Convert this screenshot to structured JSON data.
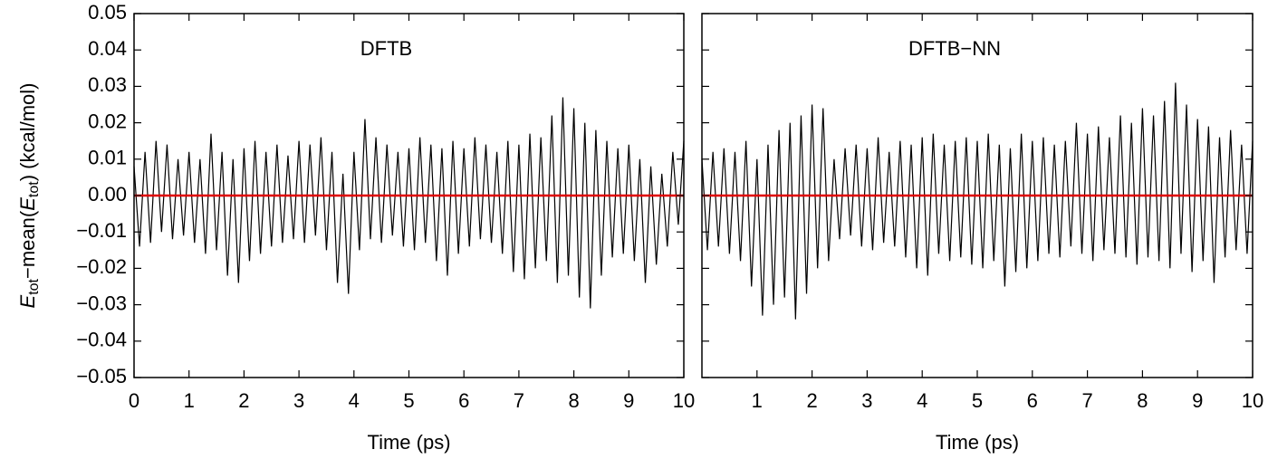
{
  "chart_data": [
    {
      "type": "line",
      "title": "DFTB",
      "xlabel": "Time (ps)",
      "ylabel": [
        "E",
        "tot",
        "−mean(",
        "E",
        "tot",
        ")  (kcal/mol)"
      ],
      "color": "#000000",
      "hline": {
        "value": 0,
        "color": "#e00000"
      },
      "xlim": [
        0,
        10
      ],
      "ylim": [
        -0.05,
        0.05
      ],
      "xticks": [
        0,
        1,
        2,
        3,
        4,
        5,
        6,
        7,
        8,
        9,
        10
      ],
      "yticks": [
        {
          "value": -0.05,
          "label": "−0.05"
        },
        {
          "value": -0.04,
          "label": "−0.04"
        },
        {
          "value": -0.03,
          "label": "−0.03"
        },
        {
          "value": -0.02,
          "label": "−0.02"
        },
        {
          "value": -0.01,
          "label": "−0.01"
        },
        {
          "value": 0,
          "label": "0.00"
        },
        {
          "value": 0.01,
          "label": "0.01"
        },
        {
          "value": 0.02,
          "label": "0.02"
        },
        {
          "value": 0.03,
          "label": "0.03"
        },
        {
          "value": 0.04,
          "label": "0.04"
        },
        {
          "value": 0.05,
          "label": "0.05"
        }
      ],
      "ytick_labels": true,
      "x": [
        0,
        0.1,
        0.2,
        0.3,
        0.4,
        0.5,
        0.6,
        0.7,
        0.8,
        0.9,
        1,
        1.1,
        1.2,
        1.3,
        1.4,
        1.5,
        1.6,
        1.7,
        1.8,
        1.9,
        2,
        2.1,
        2.2,
        2.3,
        2.4,
        2.5,
        2.6,
        2.7,
        2.8,
        2.9,
        3,
        3.1,
        3.2,
        3.3,
        3.4,
        3.5,
        3.6,
        3.7,
        3.8,
        3.9,
        4,
        4.1,
        4.2,
        4.3,
        4.4,
        4.5,
        4.6,
        4.7,
        4.8,
        4.9,
        5,
        5.1,
        5.2,
        5.3,
        5.4,
        5.5,
        5.6,
        5.7,
        5.8,
        5.9,
        6,
        6.1,
        6.2,
        6.3,
        6.4,
        6.5,
        6.6,
        6.7,
        6.8,
        6.9,
        7,
        7.1,
        7.2,
        7.3,
        7.4,
        7.5,
        7.6,
        7.7,
        7.8,
        7.9,
        8,
        8.1,
        8.2,
        8.3,
        8.4,
        8.5,
        8.6,
        8.7,
        8.8,
        8.9,
        9,
        9.1,
        9.2,
        9.3,
        9.4,
        9.5,
        9.6,
        9.7,
        9.8,
        9.9,
        10
      ],
      "values": [
        0.008,
        -0.014,
        0.012,
        -0.013,
        0.015,
        -0.01,
        0.014,
        -0.012,
        0.01,
        -0.011,
        0.012,
        -0.013,
        0.01,
        -0.016,
        0.017,
        -0.015,
        0.012,
        -0.022,
        0.01,
        -0.024,
        0.013,
        -0.018,
        0.015,
        -0.016,
        0.012,
        -0.014,
        0.014,
        -0.013,
        0.011,
        -0.012,
        0.015,
        -0.013,
        0.014,
        -0.011,
        0.016,
        -0.015,
        0.012,
        -0.024,
        0.006,
        -0.027,
        0.012,
        -0.015,
        0.021,
        -0.012,
        0.016,
        -0.013,
        0.014,
        -0.011,
        0.012,
        -0.014,
        0.013,
        -0.015,
        0.016,
        -0.013,
        0.014,
        -0.018,
        0.013,
        -0.022,
        0.015,
        -0.016,
        0.013,
        -0.014,
        0.016,
        -0.012,
        0.014,
        -0.013,
        0.012,
        -0.016,
        0.015,
        -0.021,
        0.014,
        -0.023,
        0.017,
        -0.02,
        0.016,
        -0.018,
        0.022,
        -0.024,
        0.027,
        -0.022,
        0.024,
        -0.028,
        0.02,
        -0.031,
        0.018,
        -0.022,
        0.015,
        -0.017,
        0.013,
        -0.016,
        0.014,
        -0.018,
        0.01,
        -0.024,
        0.008,
        -0.019,
        0.006,
        -0.014,
        0.012,
        -0.008,
        0.015
      ]
    },
    {
      "type": "line",
      "title": "DFTB−NN",
      "xlabel": "Time (ps)",
      "color": "#000000",
      "hline": {
        "value": 0,
        "color": "#e00000"
      },
      "xlim": [
        0,
        10
      ],
      "ylim": [
        -0.05,
        0.05
      ],
      "xticks": [
        1,
        2,
        3,
        4,
        5,
        6,
        7,
        8,
        9,
        10
      ],
      "yticks": [
        -0.05,
        -0.04,
        -0.03,
        -0.02,
        -0.01,
        0,
        0.01,
        0.02,
        0.03,
        0.04,
        0.05
      ],
      "ytick_labels": false,
      "x": [
        0,
        0.1,
        0.2,
        0.3,
        0.4,
        0.5,
        0.6,
        0.7,
        0.8,
        0.9,
        1,
        1.1,
        1.2,
        1.3,
        1.4,
        1.5,
        1.6,
        1.7,
        1.8,
        1.9,
        2,
        2.1,
        2.2,
        2.3,
        2.4,
        2.5,
        2.6,
        2.7,
        2.8,
        2.9,
        3,
        3.1,
        3.2,
        3.3,
        3.4,
        3.5,
        3.6,
        3.7,
        3.8,
        3.9,
        4,
        4.1,
        4.2,
        4.3,
        4.4,
        4.5,
        4.6,
        4.7,
        4.8,
        4.9,
        5,
        5.1,
        5.2,
        5.3,
        5.4,
        5.5,
        5.6,
        5.7,
        5.8,
        5.9,
        6,
        6.1,
        6.2,
        6.3,
        6.4,
        6.5,
        6.6,
        6.7,
        6.8,
        6.9,
        7,
        7.1,
        7.2,
        7.3,
        7.4,
        7.5,
        7.6,
        7.7,
        7.8,
        7.9,
        8,
        8.1,
        8.2,
        8.3,
        8.4,
        8.5,
        8.6,
        8.7,
        8.8,
        8.9,
        9,
        9.1,
        9.2,
        9.3,
        9.4,
        9.5,
        9.6,
        9.7,
        9.8,
        9.9,
        10
      ],
      "values": [
        0.01,
        -0.015,
        0.012,
        -0.014,
        0.013,
        -0.016,
        0.012,
        -0.018,
        0.015,
        -0.025,
        0.01,
        -0.033,
        0.014,
        -0.03,
        0.018,
        -0.028,
        0.02,
        -0.034,
        0.022,
        -0.027,
        0.025,
        -0.02,
        0.024,
        -0.018,
        0.01,
        -0.012,
        0.013,
        -0.011,
        0.014,
        -0.014,
        0.013,
        -0.015,
        0.016,
        -0.013,
        0.012,
        -0.014,
        0.015,
        -0.017,
        0.014,
        -0.02,
        0.016,
        -0.022,
        0.017,
        -0.016,
        0.014,
        -0.018,
        0.015,
        -0.017,
        0.016,
        -0.019,
        0.015,
        -0.02,
        0.017,
        -0.018,
        0.014,
        -0.025,
        0.013,
        -0.021,
        0.017,
        -0.02,
        0.015,
        -0.018,
        0.016,
        -0.016,
        0.014,
        -0.017,
        0.015,
        -0.014,
        0.02,
        -0.016,
        0.017,
        -0.018,
        0.019,
        -0.015,
        0.016,
        -0.016,
        0.022,
        -0.017,
        0.02,
        -0.019,
        0.024,
        -0.017,
        0.022,
        -0.018,
        0.026,
        -0.02,
        0.031,
        -0.016,
        0.025,
        -0.021,
        0.021,
        -0.018,
        0.019,
        -0.024,
        0.016,
        -0.017,
        0.018,
        -0.015,
        0.014,
        -0.016,
        0.015
      ]
    }
  ]
}
